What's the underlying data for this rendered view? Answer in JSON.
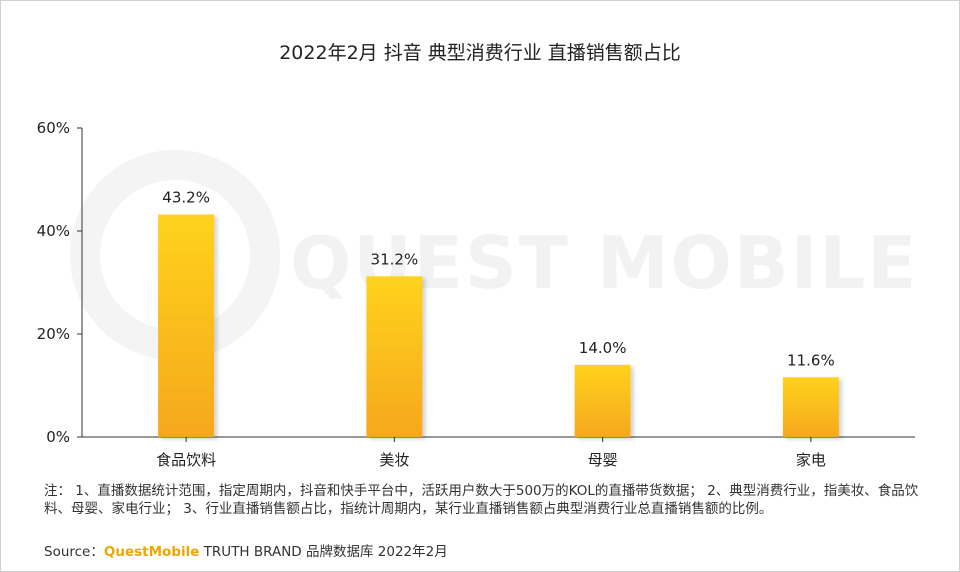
{
  "chart_data": {
    "type": "bar",
    "title": "2022年2月 抖音 典型消费行业 直播销售额占比",
    "categories": [
      "食品饮料",
      "美妆",
      "母婴",
      "家电"
    ],
    "values": [
      43.2,
      31.2,
      14.0,
      11.6
    ],
    "value_labels": [
      "43.2%",
      "31.2%",
      "14.0%",
      "11.6%"
    ],
    "yticks": [
      0,
      20,
      40,
      60
    ],
    "ytick_labels": [
      "0%",
      "20%",
      "40%",
      "60%"
    ],
    "ylim": [
      0,
      60
    ],
    "xlabel": "",
    "ylabel": "",
    "grid": false,
    "bar_color_top": "#ffd21a",
    "bar_color_bottom": "#f5a81f"
  },
  "watermark": {
    "text": "QUEST MOBILE"
  },
  "notes": "注： 1、直播数据统计范围，指定周期内，抖音和快手平台中，活跃用户数大于500万的KOL的直播带货数据； 2、典型消费行业，指美妆、食品饮料、母婴、家电行业； 3、行业直播销售额占比，指统计周期内，某行业直播销售额占典型消费行业总直播销售额的比例。",
  "source": {
    "prefix": "Source：",
    "brand": "QuestMobile",
    "suffix": " TRUTH BRAND 品牌数据库 2022年2月"
  }
}
